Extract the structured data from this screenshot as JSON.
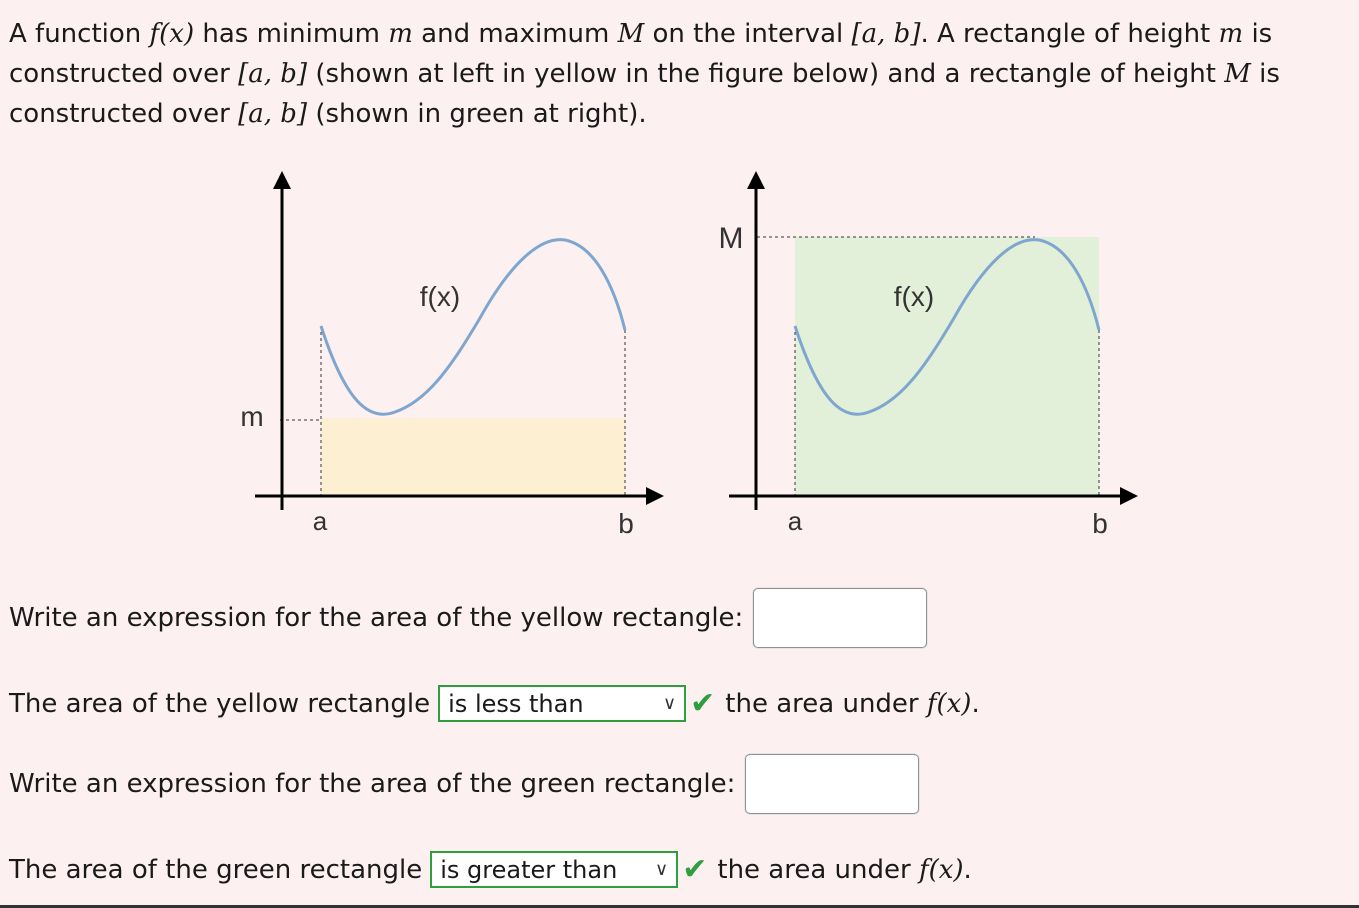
{
  "intro": {
    "seg1": "A function ",
    "fx": "f(x)",
    "seg2": " has minimum ",
    "m": "m",
    "seg3": " and maximum ",
    "M": "M",
    "seg4": " on the interval ",
    "interval": "[a, b]",
    "seg5": ". A rectangle of height ",
    "m2": "m",
    "seg6": " is constructed over ",
    "interval2": "[a, b]",
    "seg7": " (shown at left in yellow in the figure below) and a rectangle of height ",
    "M2": "M",
    "seg8": " is constructed over ",
    "interval3": "[a, b]",
    "seg9": " (shown in green at right)."
  },
  "figure": {
    "left": {
      "func_label": "f(x)",
      "y_label": "m",
      "a_label": "a",
      "b_label": "b",
      "fill": "#fdf0d2"
    },
    "right": {
      "func_label": "f(x)",
      "y_label": "M",
      "a_label": "a",
      "b_label": "b",
      "fill": "#e2f0da"
    },
    "curve_color": "#7ea6cf"
  },
  "q1": {
    "prompt": "Write an expression for the area of the yellow rectangle:",
    "value": ""
  },
  "q2": {
    "prefix": "The area of the yellow rectangle",
    "selected": "is less than",
    "suffix_text": "the area under ",
    "fx": "f(x)",
    "end": "."
  },
  "q3": {
    "prompt": "Write an expression for the area of the green rectangle:",
    "value": ""
  },
  "q4": {
    "prefix": "The area of the green rectangle",
    "selected": "is greater than",
    "suffix_text": "the area under ",
    "fx": "f(x)",
    "end": "."
  },
  "colors": {
    "correct": "#2e9e3e"
  }
}
